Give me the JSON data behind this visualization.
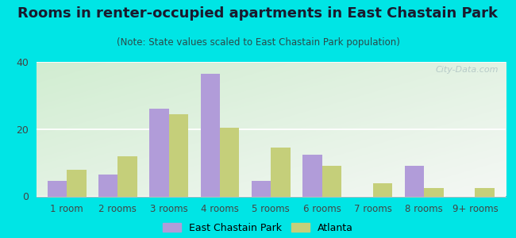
{
  "title": "Rooms in renter-occupied apartments in East Chastain Park",
  "subtitle": "(Note: State values scaled to East Chastain Park population)",
  "categories": [
    "1 room",
    "2 rooms",
    "3 rooms",
    "4 rooms",
    "5 rooms",
    "6 rooms",
    "7 rooms",
    "8 rooms",
    "9+ rooms"
  ],
  "east_chastain": [
    4.5,
    6.5,
    26.0,
    36.5,
    4.5,
    12.5,
    0.0,
    9.0,
    0.0
  ],
  "atlanta": [
    8.0,
    12.0,
    24.5,
    20.5,
    14.5,
    9.0,
    4.0,
    2.5,
    2.5
  ],
  "color_chastain": "#b19cd9",
  "color_atlanta": "#c5cf7a",
  "background_outer": "#00e5e5",
  "ylim": [
    0,
    40
  ],
  "yticks": [
    0,
    20,
    40
  ],
  "bar_width": 0.38,
  "legend_chastain": "East Chastain Park",
  "legend_atlanta": "Atlanta",
  "watermark": "City-Data.com",
  "title_fontsize": 13,
  "subtitle_fontsize": 8.5,
  "tick_fontsize": 8.5
}
